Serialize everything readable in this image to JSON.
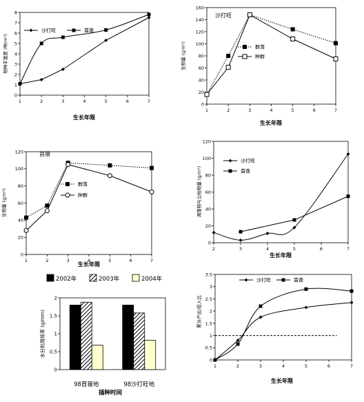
{
  "chart_data": [
    {
      "id": "c1",
      "type": "line",
      "xlabel": "生长年限",
      "ylabel": "物种丰富度 (种/m²)",
      "xlim": [
        1,
        7
      ],
      "ylim": [
        0,
        8
      ],
      "xticks": [
        "1",
        "2",
        "3",
        "4",
        "5",
        "6",
        "7"
      ],
      "yticks": [
        "0",
        "1",
        "2",
        "3",
        "4",
        "5",
        "6",
        "7",
        "8"
      ],
      "grid": false,
      "legend_position": "top",
      "series": [
        {
          "name": "沙打旺",
          "marker": "diamond",
          "line": "solid",
          "smooth": false,
          "x": [
            1,
            2,
            3,
            5,
            7
          ],
          "y": [
            1.1,
            1.5,
            2.5,
            5.3,
            7.5
          ]
        },
        {
          "name": "苜蓿",
          "marker": "square",
          "line": "solid",
          "smooth": true,
          "x": [
            1,
            2,
            3,
            5,
            7
          ],
          "y": [
            1.1,
            5.0,
            5.6,
            6.3,
            7.8
          ]
        }
      ]
    },
    {
      "id": "c2",
      "type": "line",
      "title": "沙打旺",
      "xlabel": "生长年限",
      "ylabel": "生物量 (g/m²)",
      "xlim": [
        1,
        7
      ],
      "ylim": [
        0,
        160
      ],
      "xticks": [
        "1",
        "2",
        "3",
        "4",
        "5",
        "6",
        "7"
      ],
      "yticks": [
        "0",
        "20",
        "40",
        "60",
        "80",
        "100",
        "120",
        "140",
        "160"
      ],
      "grid": false,
      "legend_position": "right",
      "series": [
        {
          "name": "群落",
          "marker": "square",
          "line": "dotted",
          "x": [
            1,
            2,
            3,
            5,
            7
          ],
          "y": [
            16,
            80,
            148,
            124,
            101
          ]
        },
        {
          "name": "种群",
          "marker": "square-open",
          "line": "solid",
          "x": [
            1,
            2,
            3,
            5,
            7
          ],
          "y": [
            16,
            61,
            148,
            108,
            75
          ]
        }
      ]
    },
    {
      "id": "c3",
      "type": "line",
      "title": "苜蓿",
      "xlabel": "生长年限",
      "ylabel": "生物量 (g/m²)",
      "xlim": [
        1,
        7
      ],
      "ylim": [
        0,
        120
      ],
      "xticks": [
        "1",
        "2",
        "3",
        "4",
        "5",
        "6",
        "7"
      ],
      "yticks": [
        "0",
        "20",
        "40",
        "60",
        "80",
        "100",
        "120"
      ],
      "grid": false,
      "legend_position": "left",
      "series": [
        {
          "name": "群落",
          "marker": "square",
          "line": "dotted",
          "x": [
            1,
            2,
            3,
            5,
            7
          ],
          "y": [
            43,
            57,
            107,
            104,
            101
          ]
        },
        {
          "name": "种群",
          "marker": "circle-open",
          "line": "solid",
          "x": [
            1,
            2,
            3,
            5,
            7
          ],
          "y": [
            28,
            51,
            105,
            92,
            73
          ]
        }
      ]
    },
    {
      "id": "c4",
      "type": "line",
      "xlabel": "生长年限",
      "ylabel": "凋落物与立枯物量 (g/m²)",
      "xlim": [
        2,
        7
      ],
      "ylim": [
        0,
        120
      ],
      "xticks": [
        "2",
        "3",
        "4",
        "5",
        "6",
        "7"
      ],
      "yticks": [
        "0",
        "20",
        "40",
        "60",
        "80",
        "100",
        "120"
      ],
      "grid": false,
      "legend_position": "left",
      "series": [
        {
          "name": "沙打旺",
          "marker": "diamond",
          "line": "solid",
          "smooth": true,
          "x": [
            2,
            3,
            4,
            5,
            7
          ],
          "y": [
            12,
            3,
            11,
            18,
            105
          ]
        },
        {
          "name": "苜蓿",
          "marker": "square",
          "line": "solid",
          "smooth": false,
          "x": [
            3,
            5,
            7
          ],
          "y": [
            13,
            27,
            55
          ]
        }
      ]
    },
    {
      "id": "c5",
      "type": "bar",
      "xlabel": "插种时间",
      "ylabel": "水分利用效率 (g/mm)",
      "ylim": [
        0,
        2
      ],
      "yticks": [
        "0",
        "0.5",
        "1",
        "1.5",
        "2"
      ],
      "categories": [
        "98苜蓿地",
        "98沙打旺地"
      ],
      "grid": false,
      "legend_position": "top",
      "series": [
        {
          "name": "2002年",
          "pattern": "solid-black",
          "values": [
            1.8,
            1.8
          ]
        },
        {
          "name": "2003年",
          "pattern": "hatched",
          "values": [
            1.88,
            1.58
          ]
        },
        {
          "name": "2004年",
          "pattern": "light-yellow",
          "values": [
            0.68,
            0.82
          ]
        }
      ]
    },
    {
      "id": "c6",
      "type": "line",
      "xlabel": "生长年限",
      "ylabel": "累计产出/投入比",
      "xlim": [
        1,
        7
      ],
      "ylim": [
        0,
        3.5
      ],
      "xticks": [
        "1",
        "2",
        "3",
        "4",
        "5",
        "6",
        "7"
      ],
      "yticks": [
        "0",
        "0.5",
        "1",
        "1.5",
        "2",
        "2.5",
        "3",
        "3.5"
      ],
      "grid": false,
      "legend_position": "top",
      "reference_line": {
        "y": 1,
        "style": "dashed",
        "x_range": [
          1,
          6.35
        ]
      },
      "series": [
        {
          "name": "沙打旺",
          "marker": "diamond",
          "line": "solid",
          "smooth": true,
          "x": [
            1,
            2,
            3,
            5,
            7
          ],
          "y": [
            0,
            0.8,
            1.75,
            2.15,
            2.35
          ]
        },
        {
          "name": "苜蓿",
          "marker": "square",
          "line": "solid",
          "smooth": true,
          "x": [
            1,
            2,
            3,
            5,
            7
          ],
          "y": [
            0,
            0.65,
            2.2,
            2.9,
            2.82
          ]
        }
      ]
    }
  ]
}
